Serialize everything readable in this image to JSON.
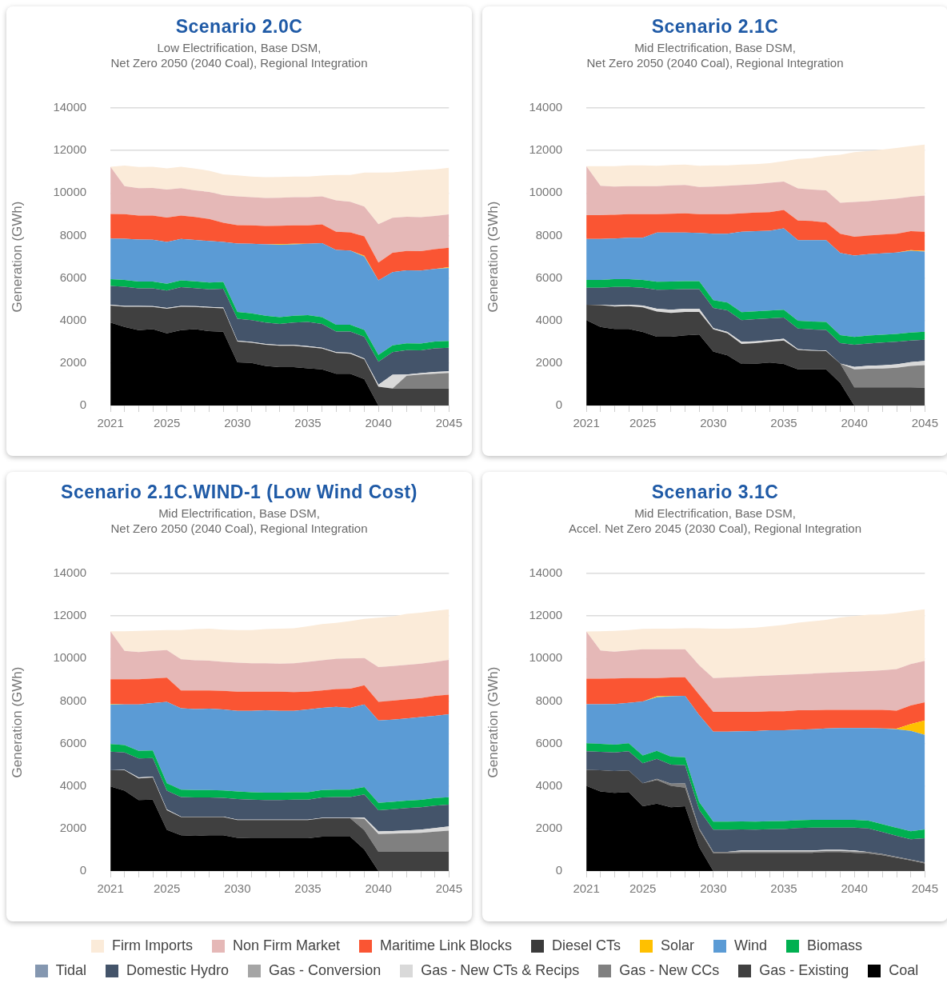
{
  "chart_data": [
    {
      "type": "area",
      "title": "Scenario 2.0C",
      "subtitle": "Low Electrification, Base DSM,\nNet Zero 2050 (2040 Coal), Regional Integration",
      "ylabel": "Generation (GWh)",
      "categories": [
        "2021",
        null,
        null,
        null,
        "2025",
        null,
        null,
        null,
        null,
        "2030",
        null,
        null,
        null,
        null,
        "2035",
        null,
        null,
        null,
        null,
        "2040",
        null,
        null,
        null,
        null,
        "2045"
      ],
      "stacked": true,
      "ylim": [
        0,
        14000
      ],
      "yticks": [
        0,
        2000,
        4000,
        6000,
        8000,
        10000,
        12000,
        14000
      ],
      "grid": "y",
      "legend": "bottom",
      "series": [
        {
          "name": "Coal",
          "color": "#000000",
          "values": [
            3900,
            3700,
            3550,
            3590,
            3400,
            3550,
            3590,
            3500,
            3470,
            2030,
            2000,
            1860,
            1810,
            1810,
            1750,
            1700,
            1500,
            1500,
            1240,
            0,
            0,
            0,
            0,
            0,
            0
          ]
        },
        {
          "name": "Gas - Existing",
          "color": "#404040",
          "values": [
            800,
            950,
            1100,
            1050,
            1150,
            1100,
            1050,
            1100,
            1100,
            980,
            950,
            1000,
            1000,
            1000,
            1000,
            980,
            970,
            940,
            930,
            880,
            800,
            800,
            800,
            800,
            800
          ]
        },
        {
          "name": "Gas - New CCs",
          "color": "#808080",
          "values": [
            0,
            0,
            0,
            0,
            0,
            0,
            0,
            0,
            0,
            0,
            0,
            0,
            0,
            0,
            0,
            0,
            0,
            0,
            0,
            0,
            0,
            600,
            660,
            700,
            730
          ]
        },
        {
          "name": "Gas - New CTs & Recips",
          "color": "#d9d9d9",
          "values": [
            40,
            40,
            40,
            40,
            40,
            40,
            40,
            40,
            40,
            40,
            40,
            40,
            40,
            40,
            40,
            40,
            40,
            40,
            40,
            100,
            650,
            60,
            60,
            80,
            80
          ]
        },
        {
          "name": "Gas - Conversion",
          "color": "#a5a5a5",
          "values": [
            null,
            null,
            null,
            null,
            null,
            null,
            null,
            null,
            null,
            null,
            null,
            null,
            null,
            null,
            null,
            null,
            null,
            null,
            null,
            null,
            null,
            null,
            null,
            null,
            null
          ]
        },
        {
          "name": "Domestic Hydro",
          "color": "#44546a",
          "values": [
            890,
            900,
            820,
            830,
            820,
            880,
            840,
            830,
            880,
            1030,
            1030,
            1000,
            990,
            1050,
            1140,
            1120,
            970,
            1000,
            1030,
            1080,
            1060,
            1150,
            1080,
            1110,
            1110
          ]
        },
        {
          "name": "Tidal",
          "color": "#8497b0",
          "values": [
            null,
            null,
            null,
            null,
            null,
            null,
            null,
            null,
            null,
            null,
            null,
            null,
            null,
            null,
            null,
            null,
            null,
            null,
            null,
            null,
            null,
            null,
            null,
            null,
            null
          ]
        },
        {
          "name": "Biomass",
          "color": "#00b050",
          "values": [
            320,
            320,
            320,
            320,
            320,
            320,
            320,
            320,
            320,
            320,
            320,
            320,
            320,
            320,
            320,
            320,
            320,
            320,
            320,
            320,
            320,
            320,
            320,
            320,
            320
          ]
        },
        {
          "name": "Wind",
          "color": "#5b9bd5",
          "values": [
            1910,
            1940,
            1980,
            1970,
            1970,
            1950,
            1950,
            1950,
            1890,
            3220,
            3270,
            3360,
            3400,
            3360,
            3360,
            3480,
            3520,
            3490,
            3450,
            3510,
            3450,
            3430,
            3430,
            3420,
            3430
          ]
        },
        {
          "name": "Solar",
          "color": "#ffc000",
          "values": [
            0,
            0,
            0,
            0,
            0,
            0,
            0,
            0,
            0,
            0,
            0,
            0,
            30,
            30,
            0,
            0,
            0,
            0,
            40,
            0,
            0,
            0,
            0,
            0,
            40
          ]
        },
        {
          "name": "Diesel CTs",
          "color": "#3b3b3b",
          "values": [
            null,
            null,
            null,
            null,
            null,
            null,
            null,
            null,
            null,
            null,
            null,
            null,
            null,
            null,
            null,
            null,
            null,
            null,
            null,
            null,
            null,
            null,
            null,
            null,
            null
          ]
        },
        {
          "name": "Maritime Link Blocks",
          "color": "#fa5533",
          "values": [
            1150,
            1150,
            1130,
            1140,
            1140,
            1100,
            1080,
            1040,
            900,
            870,
            870,
            870,
            870,
            870,
            870,
            880,
            860,
            860,
            910,
            840,
            910,
            910,
            910,
            930,
            910
          ]
        },
        {
          "name": "Non Firm Market",
          "color": "#e5b8b7",
          "values": [
            2220,
            1320,
            1290,
            1300,
            1320,
            1290,
            1250,
            1270,
            1300,
            1350,
            1320,
            1320,
            1320,
            1320,
            1320,
            1320,
            1470,
            1440,
            1400,
            1800,
            1640,
            1610,
            1600,
            1560,
            1570
          ]
        },
        {
          "name": "Firm Imports",
          "color": "#fbebd9",
          "values": [
            0,
            970,
            990,
            990,
            1000,
            1000,
            1030,
            1000,
            980,
            990,
            970,
            970,
            970,
            970,
            970,
            980,
            1200,
            1260,
            1600,
            2430,
            2140,
            2150,
            2220,
            2190,
            2200
          ]
        }
      ]
    },
    {
      "type": "area",
      "title": "Scenario 2.1C",
      "subtitle": "Mid Electrification, Base DSM,\nNet Zero 2050 (2040 Coal), Regional Integration",
      "ylabel": "Generation (GWh)",
      "categories": [
        "2021",
        null,
        null,
        null,
        "2025",
        null,
        null,
        null,
        null,
        "2030",
        null,
        null,
        null,
        null,
        "2035",
        null,
        null,
        null,
        null,
        "2040",
        null,
        null,
        null,
        null,
        "2045"
      ],
      "stacked": true,
      "ylim": [
        0,
        14000
      ],
      "yticks": [
        0,
        2000,
        4000,
        6000,
        8000,
        10000,
        12000,
        14000
      ],
      "grid": "y",
      "series": [
        {
          "color": "#000000",
          "values": [
            4020,
            3700,
            3600,
            3600,
            3460,
            3240,
            3240,
            3300,
            3340,
            2540,
            2360,
            1960,
            1970,
            2020,
            1960,
            1700,
            1700,
            1700,
            1060,
            0,
            0,
            0,
            0,
            0,
            0
          ]
        },
        {
          "color": "#404040",
          "values": [
            720,
            1020,
            1060,
            1080,
            1160,
            1180,
            1120,
            1100,
            1060,
            1040,
            1040,
            940,
            970,
            980,
            1100,
            920,
            880,
            860,
            920,
            860,
            860,
            860,
            860,
            860,
            840
          ]
        },
        {
          "color": "#808080",
          "values": [
            0,
            0,
            0,
            0,
            0,
            0,
            0,
            0,
            0,
            0,
            0,
            0,
            0,
            0,
            0,
            0,
            0,
            0,
            0,
            840,
            870,
            880,
            920,
            1000,
            1060
          ]
        },
        {
          "color": "#d9d9d9",
          "values": [
            0,
            20,
            50,
            60,
            80,
            130,
            150,
            150,
            150,
            60,
            60,
            100,
            80,
            80,
            80,
            30,
            30,
            30,
            0,
            120,
            140,
            150,
            160,
            180,
            200
          ]
        },
        {
          "color": "#44546a",
          "values": [
            800,
            800,
            870,
            840,
            840,
            900,
            950,
            930,
            930,
            950,
            1020,
            1020,
            1040,
            1020,
            1000,
            970,
            970,
            970,
            960,
            1040,
            1050,
            1070,
            1060,
            1020,
            1000
          ]
        },
        {
          "color": "#00b050",
          "values": [
            370,
            370,
            370,
            370,
            370,
            370,
            370,
            370,
            370,
            370,
            370,
            370,
            370,
            370,
            370,
            370,
            370,
            370,
            370,
            370,
            370,
            370,
            370,
            370,
            370
          ]
        },
        {
          "color": "#5b9bd5",
          "values": [
            1930,
            1930,
            1910,
            1940,
            1980,
            2320,
            2310,
            2290,
            2270,
            3120,
            3230,
            3790,
            3770,
            3750,
            3830,
            3790,
            3830,
            3850,
            3870,
            3830,
            3830,
            3830,
            3830,
            3850,
            3770
          ]
        },
        {
          "color": "#ffc000",
          "values": [
            0,
            0,
            0,
            0,
            0,
            0,
            0,
            0,
            0,
            0,
            0,
            0,
            0,
            0,
            0,
            0,
            0,
            0,
            0,
            0,
            0,
            0,
            0,
            30,
            30
          ]
        },
        {
          "color": "#fa5533",
          "values": [
            1120,
            1120,
            1120,
            1110,
            1110,
            860,
            880,
            900,
            880,
            920,
            920,
            860,
            880,
            880,
            860,
            920,
            900,
            840,
            900,
            880,
            880,
            880,
            880,
            890,
            910
          ]
        },
        {
          "color": "#e5b8b7",
          "values": [
            2300,
            1380,
            1320,
            1320,
            1320,
            1320,
            1340,
            1340,
            1280,
            1300,
            1340,
            1340,
            1340,
            1380,
            1340,
            1520,
            1480,
            1500,
            1460,
            1640,
            1620,
            1640,
            1660,
            1620,
            1700
          ]
        },
        {
          "color": "#fbebd9",
          "values": [
            0,
            920,
            960,
            980,
            980,
            960,
            960,
            960,
            1000,
            1000,
            960,
            960,
            940,
            920,
            960,
            1380,
            1480,
            1620,
            2260,
            2340,
            2360,
            2360,
            2380,
            2380,
            2400
          ]
        }
      ]
    },
    {
      "type": "area",
      "title": "Scenario 2.1C.WIND-1 (Low Wind Cost)",
      "subtitle": "Mid Electrification, Base DSM,\nNet Zero 2050 (2040 Coal), Regional Integration",
      "ylabel": "Generation (GWh)",
      "categories": [
        "2021",
        null,
        null,
        null,
        "2025",
        null,
        null,
        null,
        null,
        "2030",
        null,
        null,
        null,
        null,
        "2035",
        null,
        null,
        null,
        null,
        "2040",
        null,
        null,
        null,
        null,
        "2045"
      ],
      "stacked": true,
      "ylim": [
        0,
        14000
      ],
      "yticks": [
        0,
        2000,
        4000,
        6000,
        8000,
        10000,
        12000,
        14000
      ],
      "grid": "y",
      "series": [
        {
          "color": "#000000",
          "values": [
            3980,
            3780,
            3340,
            3360,
            1940,
            1680,
            1660,
            1680,
            1680,
            1560,
            1540,
            1540,
            1540,
            1540,
            1540,
            1620,
            1620,
            1620,
            1020,
            0,
            0,
            0,
            0,
            0,
            0
          ]
        },
        {
          "color": "#404040",
          "values": [
            760,
            960,
            1020,
            1040,
            920,
            860,
            880,
            860,
            860,
            840,
            860,
            860,
            860,
            860,
            860,
            860,
            860,
            860,
            900,
            900,
            900,
            900,
            900,
            900,
            900
          ]
        },
        {
          "color": "#808080",
          "values": [
            0,
            0,
            0,
            0,
            0,
            0,
            0,
            0,
            0,
            0,
            0,
            0,
            0,
            0,
            0,
            0,
            0,
            0,
            540,
            840,
            860,
            880,
            900,
            950,
            1000
          ]
        },
        {
          "color": "#d9d9d9",
          "values": [
            0,
            20,
            40,
            40,
            40,
            20,
            20,
            20,
            20,
            20,
            20,
            20,
            20,
            20,
            20,
            20,
            20,
            20,
            60,
            120,
            120,
            130,
            150,
            170,
            200
          ]
        },
        {
          "color": "#44546a",
          "values": [
            880,
            820,
            900,
            880,
            880,
            920,
            900,
            900,
            880,
            970,
            940,
            920,
            920,
            940,
            940,
            960,
            980,
            980,
            1080,
            1000,
            1030,
            1050,
            1050,
            1060,
            1020
          ]
        },
        {
          "color": "#00b050",
          "values": [
            350,
            350,
            350,
            350,
            350,
            350,
            350,
            350,
            350,
            350,
            350,
            350,
            350,
            350,
            350,
            350,
            350,
            350,
            350,
            350,
            350,
            350,
            350,
            350,
            350
          ]
        },
        {
          "color": "#5b9bd5",
          "values": [
            1870,
            1910,
            2190,
            2230,
            3830,
            3830,
            3810,
            3830,
            3810,
            3800,
            3830,
            3870,
            3850,
            3830,
            3890,
            3870,
            3890,
            3850,
            3890,
            3870,
            3860,
            3870,
            3890,
            3870,
            3910
          ]
        },
        {
          "color": "#ffc000",
          "values": [
            30,
            0,
            0,
            0,
            0,
            0,
            0,
            0,
            0,
            0,
            0,
            0,
            0,
            0,
            0,
            0,
            0,
            0,
            0,
            0,
            0,
            0,
            0,
            0,
            0
          ]
        },
        {
          "color": "#fa5533",
          "values": [
            1150,
            1180,
            1180,
            1160,
            1140,
            840,
            880,
            860,
            880,
            900,
            900,
            880,
            900,
            880,
            840,
            820,
            840,
            900,
            900,
            880,
            900,
            900,
            900,
            940,
            920
          ]
        },
        {
          "color": "#e5b8b7",
          "values": [
            2260,
            1340,
            1280,
            1300,
            1300,
            1460,
            1420,
            1400,
            1360,
            1360,
            1340,
            1340,
            1320,
            1360,
            1400,
            1420,
            1420,
            1420,
            1280,
            1640,
            1620,
            1620,
            1620,
            1600,
            1640
          ]
        },
        {
          "color": "#fbebd9",
          "values": [
            0,
            920,
            1000,
            960,
            940,
            1380,
            1460,
            1500,
            1520,
            1540,
            1560,
            1600,
            1640,
            1640,
            1680,
            1700,
            1700,
            1760,
            1840,
            2320,
            2340,
            2400,
            2400,
            2400,
            2380
          ]
        }
      ]
    },
    {
      "type": "area",
      "title": "Scenario 3.1C",
      "subtitle": "Mid Electrification, Base DSM,\nAccel. Net Zero 2045 (2030 Coal), Regional Integration",
      "ylabel": "Generation (GWh)",
      "categories": [
        "2021",
        null,
        null,
        null,
        "2025",
        null,
        null,
        null,
        null,
        "2030",
        null,
        null,
        null,
        null,
        "2035",
        null,
        null,
        null,
        null,
        "2040",
        null,
        null,
        null,
        null,
        "2045"
      ],
      "stacked": true,
      "ylim": [
        0,
        14000
      ],
      "yticks": [
        0,
        2000,
        4000,
        6000,
        8000,
        10000,
        12000,
        14000
      ],
      "grid": "y",
      "series": [
        {
          "color": "#000000",
          "values": [
            4010,
            3740,
            3680,
            3720,
            3050,
            3170,
            3000,
            3050,
            1130,
            0,
            0,
            0,
            0,
            0,
            0,
            0,
            0,
            0,
            0,
            0,
            0,
            0,
            0,
            0,
            0
          ]
        },
        {
          "color": "#404040",
          "values": [
            750,
            1000,
            1020,
            1010,
            1080,
            1110,
            1010,
            870,
            810,
            840,
            840,
            860,
            860,
            860,
            860,
            860,
            860,
            890,
            890,
            860,
            830,
            740,
            620,
            500,
            360
          ]
        },
        {
          "color": "#808080",
          "values": [
            0,
            0,
            0,
            0,
            0,
            60,
            100,
            200,
            60,
            60,
            60,
            60,
            60,
            60,
            60,
            60,
            60,
            60,
            60,
            60,
            60,
            60,
            50,
            40,
            40
          ]
        },
        {
          "color": "#d9d9d9",
          "values": [
            0,
            0,
            0,
            0,
            0,
            0,
            0,
            0,
            0,
            0,
            0,
            50,
            50,
            50,
            50,
            50,
            50,
            50,
            50,
            50,
            0,
            0,
            0,
            0,
            0
          ]
        },
        {
          "color": "#44546a",
          "values": [
            880,
            870,
            880,
            910,
            940,
            940,
            900,
            860,
            880,
            1050,
            1050,
            990,
            980,
            1000,
            1010,
            1050,
            1070,
            1040,
            1040,
            1070,
            1110,
            1030,
            990,
            960,
            1140
          ]
        },
        {
          "color": "#00b050",
          "values": [
            370,
            370,
            370,
            370,
            370,
            370,
            370,
            370,
            370,
            370,
            370,
            370,
            370,
            370,
            370,
            370,
            370,
            370,
            370,
            370,
            370,
            370,
            370,
            370,
            420
          ]
        },
        {
          "color": "#5b9bd5",
          "values": [
            1840,
            1870,
            1910,
            1900,
            2540,
            2530,
            2840,
            2890,
            4090,
            4240,
            4240,
            4250,
            4270,
            4280,
            4270,
            4260,
            4260,
            4300,
            4320,
            4320,
            4360,
            4510,
            4640,
            4730,
            4450
          ]
        },
        {
          "color": "#ffc000",
          "values": [
            0,
            0,
            0,
            0,
            0,
            40,
            20,
            0,
            0,
            0,
            0,
            0,
            0,
            0,
            0,
            0,
            0,
            0,
            0,
            0,
            0,
            0,
            30,
            320,
            670
          ]
        },
        {
          "color": "#fa5533",
          "values": [
            1200,
            1200,
            1200,
            1170,
            1100,
            860,
            870,
            880,
            960,
            930,
            930,
            910,
            900,
            900,
            900,
            910,
            890,
            870,
            850,
            850,
            850,
            870,
            850,
            870,
            860
          ]
        },
        {
          "color": "#e5b8b7",
          "values": [
            2220,
            1330,
            1260,
            1300,
            1350,
            1350,
            1320,
            1310,
            1380,
            1590,
            1620,
            1650,
            1680,
            1680,
            1710,
            1700,
            1730,
            1740,
            1770,
            1800,
            1830,
            1870,
            1950,
            1950,
            1950
          ]
        },
        {
          "color": "#fbebd9",
          "values": [
            0,
            900,
            980,
            960,
            960,
            970,
            970,
            990,
            1740,
            2320,
            2290,
            2280,
            2280,
            2320,
            2350,
            2430,
            2460,
            2500,
            2580,
            2620,
            2650,
            2620,
            2640,
            2490,
            2430
          ]
        }
      ]
    }
  ]
}
